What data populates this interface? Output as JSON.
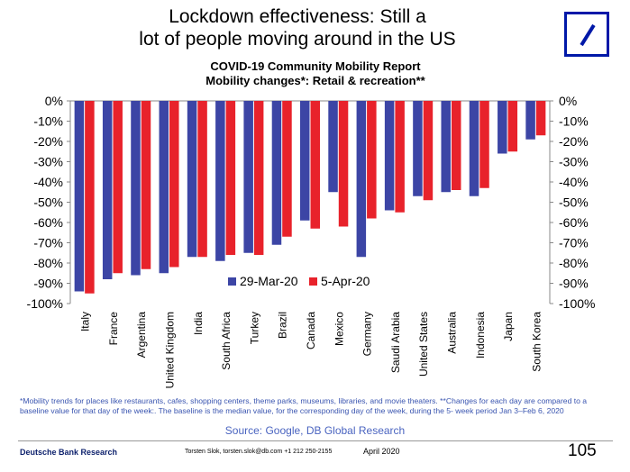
{
  "slide": {
    "title_line1": "Lockdown effectiveness: Still a",
    "title_line2": "lot of people moving around in the US",
    "footnote": "*Mobility trends for places like restaurants, cafes, shopping centers, theme parks, museums, libraries, and movie theaters. **Changes for each day are compared to a baseline value for that day of the week:. The baseline is the median value, for the corresponding day of the week, during the 5- week period Jan 3–Feb 6, 2020",
    "source": "Source: Google, DB Global  Research",
    "brand": "Deutsche Bank Research",
    "contact": "Torsten Slok, torsten.slok@db.com  +1 212 250-2155",
    "date": "April 2020",
    "page_number": "105",
    "colors": {
      "series1": "#3c45a5",
      "series2": "#e8222b",
      "logo": "#0018A8"
    }
  },
  "chart_data": {
    "type": "bar",
    "title": "COVID-19 Community Mobility Report",
    "subtitle": "Mobility changes*: Retail & recreation**",
    "categories": [
      "Italy",
      "France",
      "Argentina",
      "United Kingdom",
      "India",
      "South Africa",
      "Turkey",
      "Brazil",
      "Canada",
      "Mexico",
      "Germany",
      "Saudi Arabia",
      "United States",
      "Australia",
      "Indonesia",
      "Japan",
      "South Korea"
    ],
    "series": [
      {
        "name": "29-Mar-20",
        "color": "#3c45a5",
        "values": [
          -94,
          -88,
          -86,
          -85,
          -77,
          -79,
          -75,
          -71,
          -59,
          -45,
          -77,
          -54,
          -47,
          -45,
          -47,
          -26,
          -19
        ]
      },
      {
        "name": "5-Apr-20",
        "color": "#e8222b",
        "values": [
          -95,
          -85,
          -83,
          -82,
          -77,
          -76,
          -76,
          -67,
          -63,
          -62,
          -58,
          -55,
          -49,
          -44,
          -43,
          -25,
          -17
        ]
      }
    ],
    "ylim": [
      -100,
      0
    ],
    "yticks": [
      "0%",
      "-10%",
      "-20%",
      "-30%",
      "-40%",
      "-50%",
      "-60%",
      "-70%",
      "-80%",
      "-90%",
      "-100%"
    ],
    "legend_position": "center-bottom",
    "grid": false
  }
}
